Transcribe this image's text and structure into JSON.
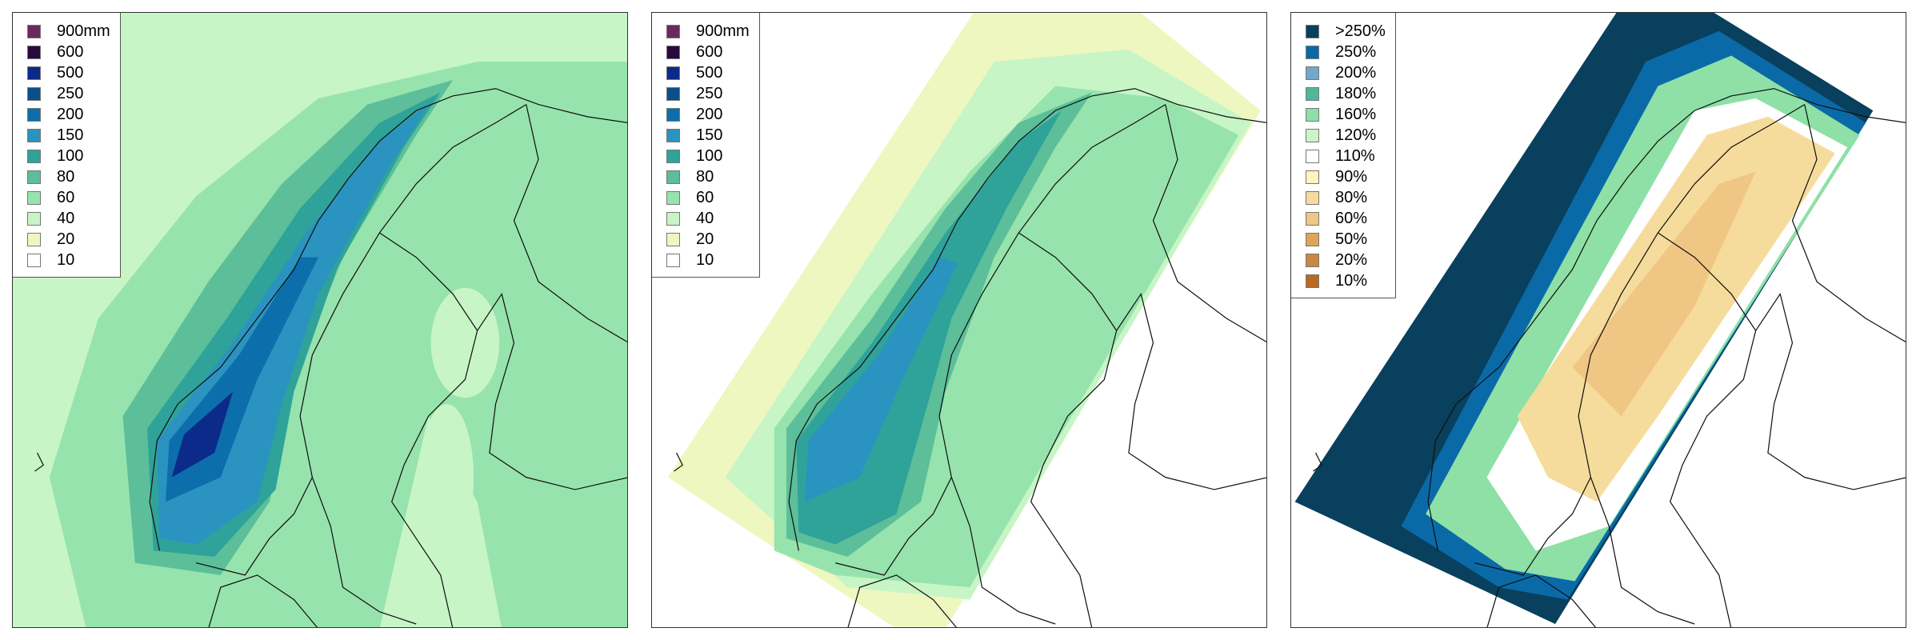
{
  "panels": [
    {
      "legend": [
        {
          "label": "900mm",
          "color": "#6b2a5e"
        },
        {
          "label": "600",
          "color": "#2a0a3d"
        },
        {
          "label": "500",
          "color": "#0c2a8a"
        },
        {
          "label": "250",
          "color": "#0b4f8a"
        },
        {
          "label": "200",
          "color": "#0c6fab"
        },
        {
          "label": "150",
          "color": "#2b93bf"
        },
        {
          "label": "100",
          "color": "#2fa39a"
        },
        {
          "label": "80",
          "color": "#5cbf99"
        },
        {
          "label": "60",
          "color": "#97e3ad"
        },
        {
          "label": "40",
          "color": "#c7f5c6"
        },
        {
          "label": "20",
          "color": "#eff7c0"
        },
        {
          "label": "10",
          "color": "#ffffff"
        }
      ]
    },
    {
      "legend": [
        {
          "label": "900mm",
          "color": "#6b2a5e"
        },
        {
          "label": "600",
          "color": "#2a0a3d"
        },
        {
          "label": "500",
          "color": "#0c2a8a"
        },
        {
          "label": "250",
          "color": "#0b4f8a"
        },
        {
          "label": "200",
          "color": "#0c6fab"
        },
        {
          "label": "150",
          "color": "#2b93bf"
        },
        {
          "label": "100",
          "color": "#2fa39a"
        },
        {
          "label": "80",
          "color": "#5cbf99"
        },
        {
          "label": "60",
          "color": "#97e3ad"
        },
        {
          "label": "40",
          "color": "#c7f5c6"
        },
        {
          "label": "20",
          "color": "#eff7c0"
        },
        {
          "label": "10",
          "color": "#ffffff"
        }
      ]
    },
    {
      "legend": [
        {
          "label": ">250%",
          "color": "#08405e"
        },
        {
          "label": "250%",
          "color": "#0a6aa8"
        },
        {
          "label": "200%",
          "color": "#73a8c8"
        },
        {
          "label": "180%",
          "color": "#52b69a"
        },
        {
          "label": "160%",
          "color": "#8ee0a6"
        },
        {
          "label": "120%",
          "color": "#cbf5c9"
        },
        {
          "label": "110%",
          "color": "#ffffff"
        },
        {
          "label": "90%",
          "color": "#fff3c0"
        },
        {
          "label": "80%",
          "color": "#f6dc9c"
        },
        {
          "label": "60%",
          "color": "#efc684"
        },
        {
          "label": "50%",
          "color": "#e0a35a"
        },
        {
          "label": "20%",
          "color": "#cc8740"
        },
        {
          "label": "10%",
          "color": "#b86a23"
        }
      ]
    }
  ]
}
